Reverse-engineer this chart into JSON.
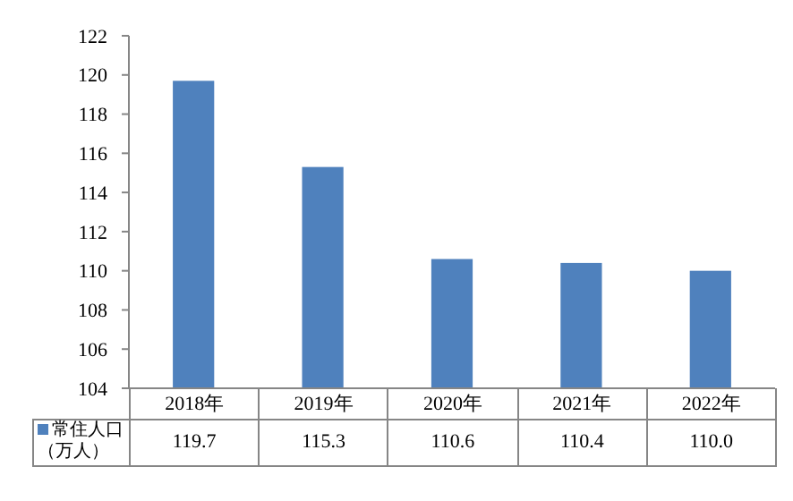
{
  "chart_data": {
    "type": "bar",
    "categories": [
      "2018年",
      "2019年",
      "2020年",
      "2021年",
      "2022年"
    ],
    "series": [
      {
        "name": "常住人口（万人）",
        "color": "#4f81bd",
        "values": [
          119.7,
          115.3,
          110.6,
          110.4,
          110.0
        ],
        "value_labels": [
          "119.7",
          "115.3",
          "110.6",
          "110.4",
          "110.0"
        ]
      }
    ],
    "ylim": [
      104,
      122
    ],
    "yticks": [
      104,
      106,
      108,
      110,
      112,
      114,
      116,
      118,
      120,
      122
    ],
    "grid": false,
    "data_labels": true,
    "legend": "bottom left"
  }
}
